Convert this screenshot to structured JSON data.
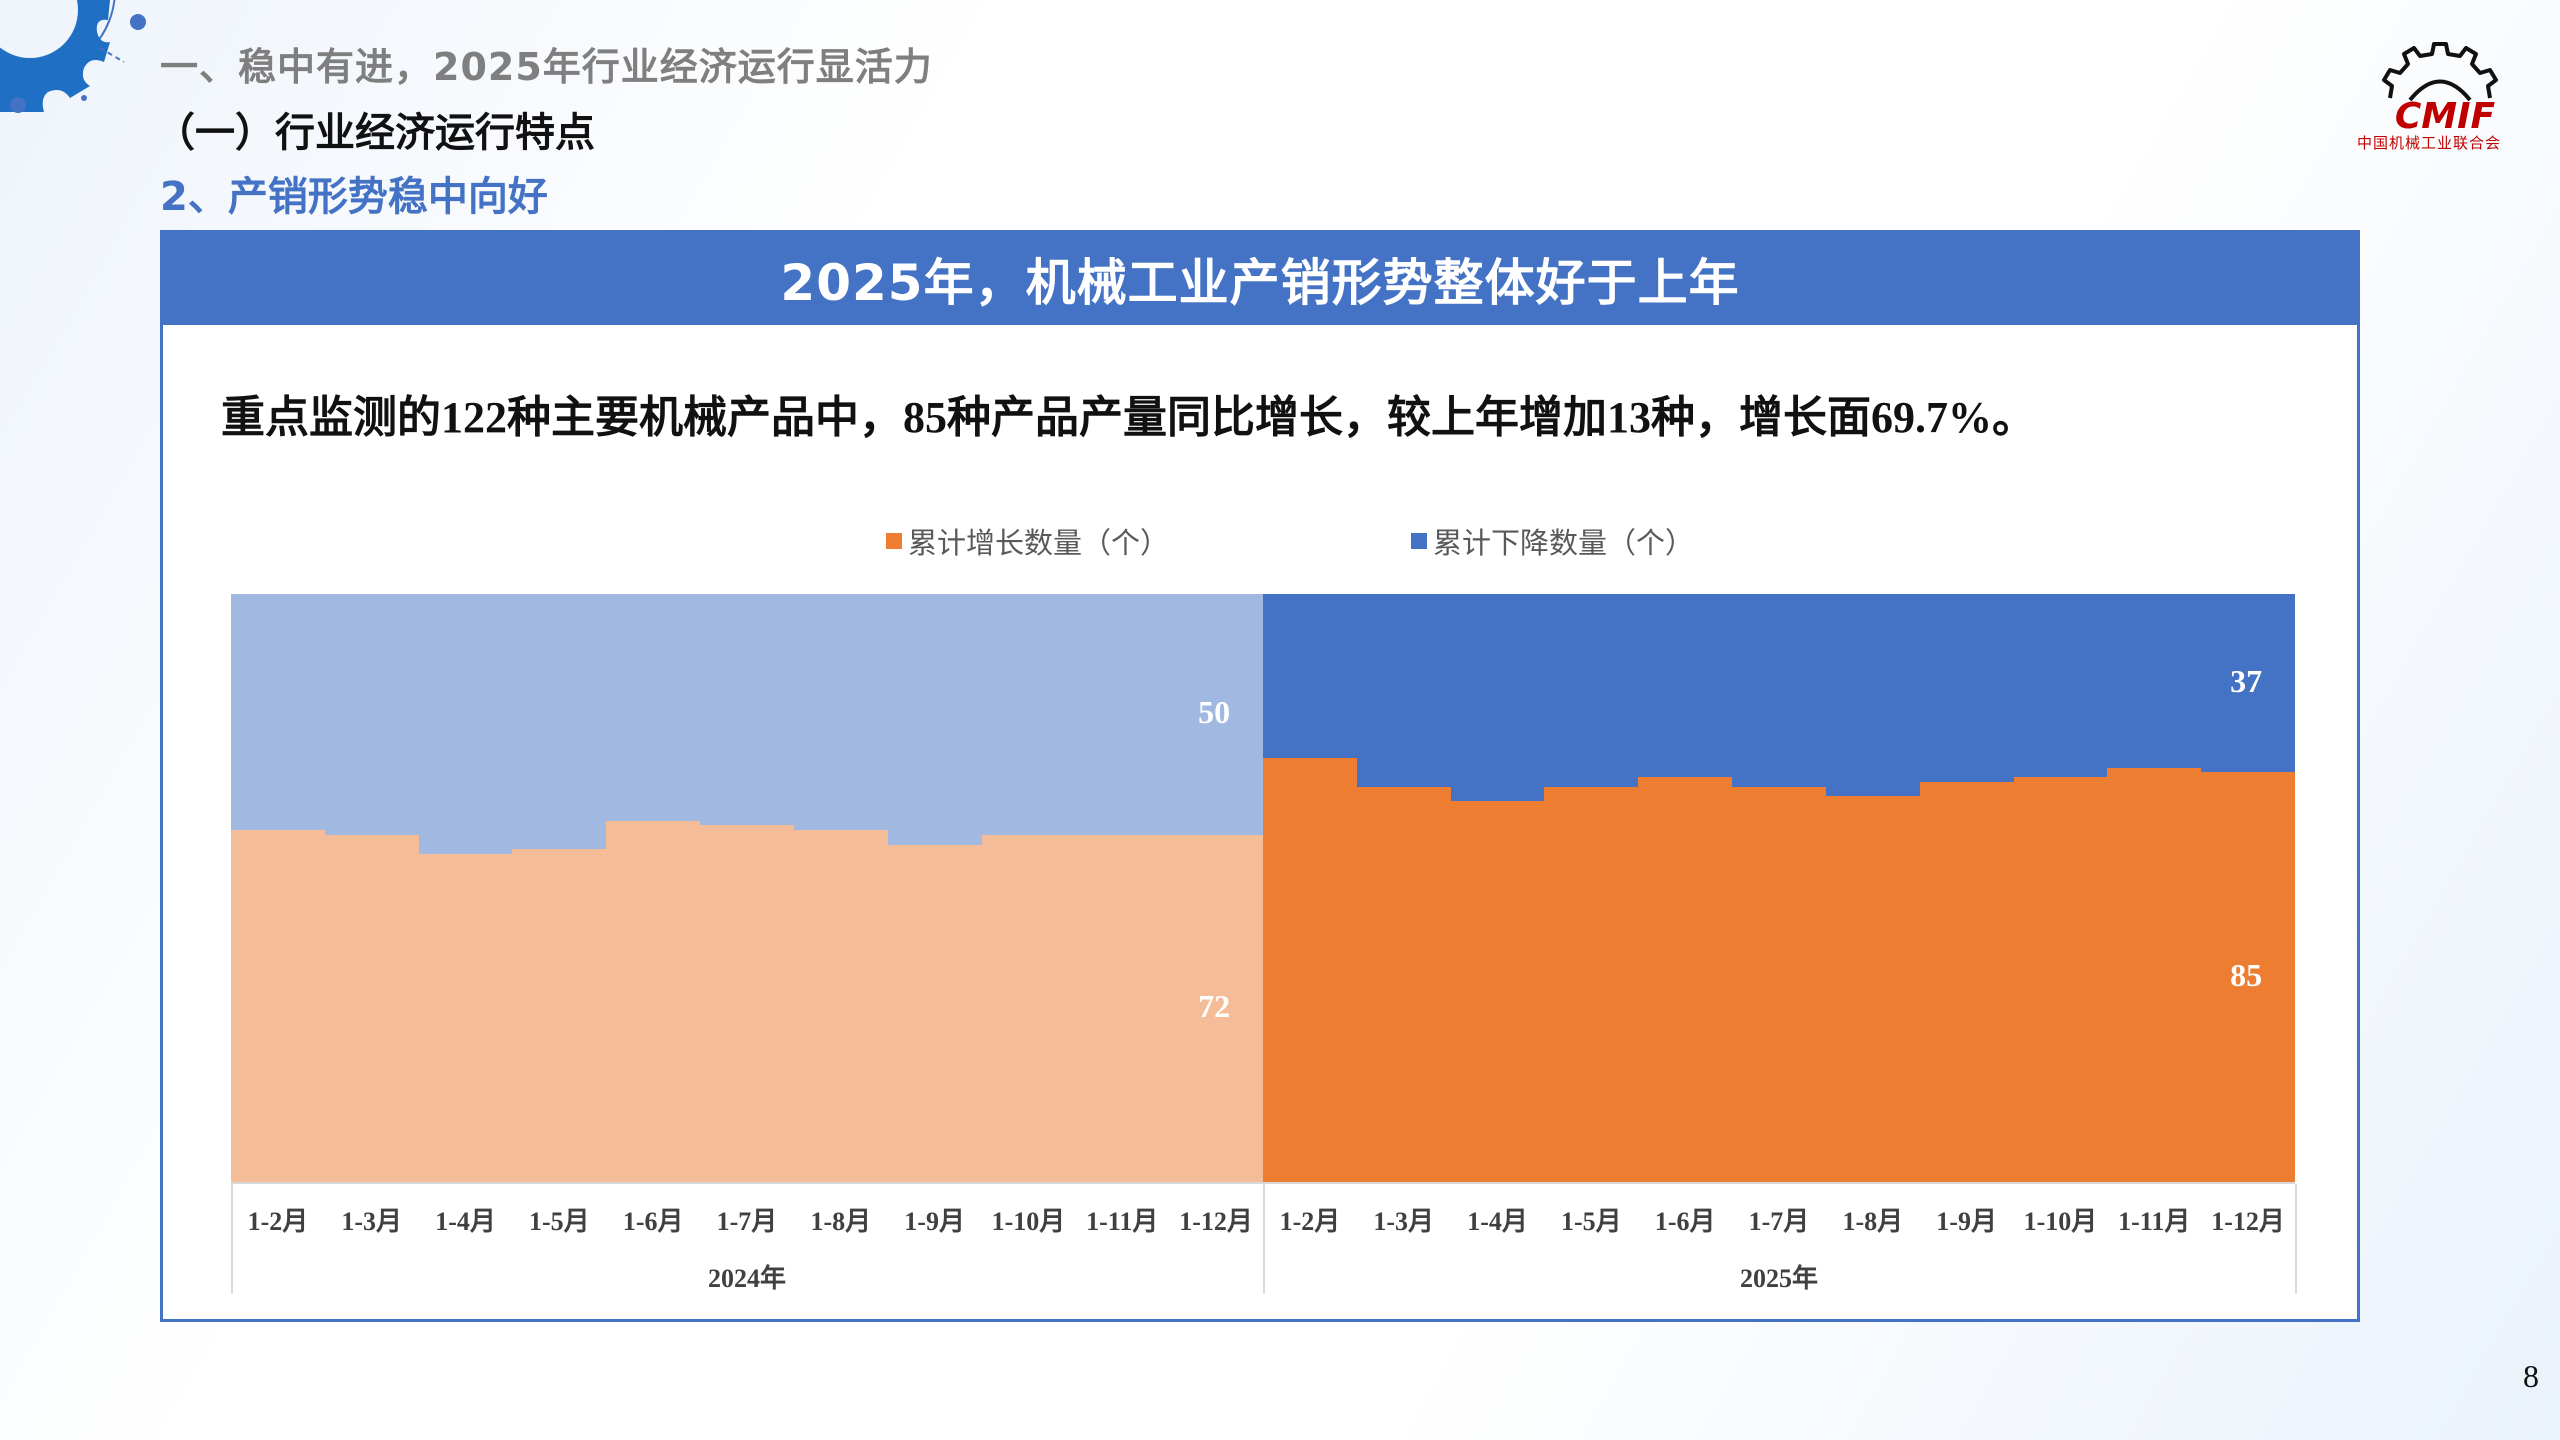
{
  "header": {
    "section": "一、稳中有进，2025年行业经济运行显活力",
    "subsection": "（一）行业经济运行特点",
    "topic": "2、产销形势稳中向好"
  },
  "logo": {
    "text": "CMIF",
    "subtitle": "中国机械工业联合会"
  },
  "panel": {
    "title": "2025年，机械工业产销形势整体好于上年",
    "summary": "重点监测的122种主要机械产品中，85种产品产量同比增长，较上年增加13种，增长面69.7%。"
  },
  "colors": {
    "increase_2025": "#ed7d31",
    "decrease_2025": "#4472c4",
    "increase_2024": "#f5bc98",
    "decrease_2024": "#a1b8e1",
    "accent": "#4472c4"
  },
  "page_number": "8",
  "chart_data": {
    "type": "bar",
    "stacked": true,
    "title": "2025年，机械工业产销形势整体好于上年",
    "xlabel": "",
    "ylabel": "",
    "ylim": [
      0,
      122
    ],
    "grid": false,
    "legend_position": "top",
    "legend": [
      "累计增长数量（个）",
      "累计下降数量（个）"
    ],
    "groups": [
      "2024年",
      "2025年"
    ],
    "categories": [
      "1-2月",
      "1-3月",
      "1-4月",
      "1-5月",
      "1-6月",
      "1-7月",
      "1-8月",
      "1-9月",
      "1-10月",
      "1-11月",
      "1-12月"
    ],
    "series": [
      {
        "name": "累计增长数量（个）",
        "group": "2024年",
        "values": [
          73,
          72,
          68,
          69,
          75,
          74,
          73,
          70,
          72,
          72,
          72
        ]
      },
      {
        "name": "累计下降数量（个）",
        "group": "2024年",
        "values": [
          49,
          50,
          54,
          53,
          47,
          48,
          49,
          52,
          50,
          50,
          50
        ]
      },
      {
        "name": "累计增长数量（个）",
        "group": "2025年",
        "values": [
          88,
          82,
          79,
          82,
          84,
          82,
          80,
          83,
          84,
          86,
          85
        ]
      },
      {
        "name": "累计下降数量（个）",
        "group": "2025年",
        "values": [
          34,
          40,
          43,
          40,
          38,
          40,
          42,
          39,
          38,
          36,
          37
        ]
      }
    ],
    "annotations": [
      {
        "group": "2024年",
        "category": "1-12月",
        "series": "累计增长数量（个）",
        "label": "72"
      },
      {
        "group": "2024年",
        "category": "1-12月",
        "series": "累计下降数量（个）",
        "label": "50"
      },
      {
        "group": "2025年",
        "category": "1-12月",
        "series": "累计增长数量（个）",
        "label": "85"
      },
      {
        "group": "2025年",
        "category": "1-12月",
        "series": "累计下降数量（个）",
        "label": "37"
      }
    ]
  }
}
